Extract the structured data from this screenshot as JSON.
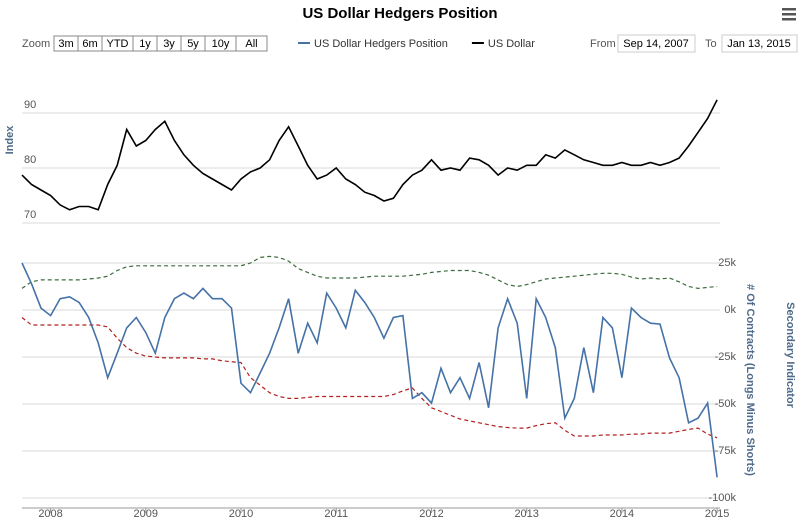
{
  "chart_data": {
    "type": "line",
    "title": "US Dollar Hedgers Position",
    "zoom": {
      "label": "Zoom",
      "buttons": [
        "3m",
        "6m",
        "YTD",
        "1y",
        "3y",
        "5y",
        "10y",
        "All"
      ]
    },
    "range": {
      "from_label": "From",
      "from": "Sep 14, 2007",
      "to_label": "To",
      "to": "Jan 13, 2015"
    },
    "y_label": "Index",
    "y2_labels": [
      "# Of Contracts (Longs Minus Shorts)",
      "Secondary Indicator"
    ],
    "xlim": [
      2007.7,
      2015.03
    ],
    "xticks": [
      2008,
      2009,
      2010,
      2011,
      2012,
      2013,
      2014,
      2015
    ],
    "ylim": [
      70,
      94
    ],
    "yticks": [
      70,
      80,
      90
    ],
    "y2lim": [
      -100000,
      30000
    ],
    "y2ticks": [
      {
        "value": 25000,
        "label": "25k"
      },
      {
        "value": 0,
        "label": "0k"
      },
      {
        "value": -25000,
        "label": "-25k"
      },
      {
        "value": -50000,
        "label": "-50k"
      },
      {
        "value": -75000,
        "label": "-75k"
      },
      {
        "value": -100000,
        "label": "-100k"
      }
    ],
    "grid": true,
    "x": [
      2007.7,
      2007.8,
      2007.9,
      2008.0,
      2008.1,
      2008.2,
      2008.3,
      2008.4,
      2008.5,
      2008.6,
      2008.7,
      2008.8,
      2008.9,
      2009.0,
      2009.1,
      2009.2,
      2009.3,
      2009.4,
      2009.5,
      2009.6,
      2009.7,
      2009.8,
      2009.9,
      2010.0,
      2010.1,
      2010.2,
      2010.3,
      2010.4,
      2010.5,
      2010.6,
      2010.7,
      2010.8,
      2010.9,
      2011.0,
      2011.1,
      2011.2,
      2011.3,
      2011.4,
      2011.5,
      2011.6,
      2011.7,
      2011.8,
      2011.9,
      2012.0,
      2012.1,
      2012.2,
      2012.3,
      2012.4,
      2012.5,
      2012.6,
      2012.7,
      2012.8,
      2012.9,
      2013.0,
      2013.1,
      2013.2,
      2013.3,
      2013.4,
      2013.5,
      2013.6,
      2013.7,
      2013.8,
      2013.9,
      2014.0,
      2014.1,
      2014.2,
      2014.3,
      2014.4,
      2014.5,
      2014.6,
      2014.7,
      2014.8,
      2014.9,
      2015.0
    ],
    "series": [
      {
        "name": "US Dollar Hedgers Position",
        "color": "#4572a7",
        "axis": "y2",
        "values": [
          25000,
          14000,
          1000,
          -3000,
          6000,
          7000,
          4000,
          -4000,
          -17500,
          -36000,
          -23000,
          -9500,
          -4000,
          -12000,
          -23000,
          -4000,
          6000,
          9000,
          6000,
          11500,
          6000,
          6000,
          1000,
          -39000,
          -44000,
          -33500,
          -23000,
          -9500,
          6000,
          -23000,
          -7000,
          -17500,
          9000,
          1000,
          -9500,
          10500,
          4000,
          -4000,
          -15000,
          -4000,
          -3000,
          -47000,
          -44000,
          -49500,
          -31000,
          -44000,
          -36000,
          -47000,
          -28000,
          -52000,
          -9500,
          6000,
          -7000,
          -47000,
          6000,
          -4000,
          -20000,
          -57500,
          -47000,
          -20000,
          -44000,
          -4000,
          -9500,
          -36000,
          1000,
          -4000,
          -7000,
          -7500,
          -25500,
          -36000,
          -60000,
          -57500,
          -49500,
          -89000
        ]
      },
      {
        "name": "US Dollar",
        "color": "#000000",
        "axis": "y",
        "values": [
          78.7,
          77,
          76,
          75,
          73.3,
          72.4,
          73,
          73,
          72.4,
          77,
          80.5,
          87,
          84,
          85,
          87,
          88.5,
          85,
          82.4,
          80.5,
          79,
          78,
          77,
          76,
          78,
          79.3,
          80,
          81.5,
          85,
          87.5,
          84,
          80.5,
          78,
          78.7,
          80,
          78,
          77,
          75.6,
          75,
          74,
          74.5,
          77,
          78.7,
          79.6,
          81.5,
          79.6,
          80,
          79.6,
          81.8,
          81.5,
          80.5,
          78.7,
          80,
          79.6,
          80.5,
          80.5,
          82.4,
          81.8,
          83.3,
          82.4,
          81.5,
          81,
          80.5,
          80.5,
          81,
          80.5,
          80.5,
          81,
          80.5,
          81,
          81.8,
          84,
          86.5,
          89,
          92.4
        ]
      },
      {
        "color": "#3d6b3d",
        "axis": "y2",
        "dash": true,
        "values": [
          11500,
          15000,
          16000,
          16000,
          16000,
          16000,
          16000,
          16500,
          17000,
          18000,
          21000,
          23000,
          23500,
          23500,
          23500,
          23500,
          23500,
          23500,
          23500,
          23500,
          23500,
          23500,
          23500,
          23500,
          25000,
          28000,
          28500,
          28000,
          26000,
          22000,
          20000,
          18000,
          17000,
          17000,
          17000,
          17000,
          17500,
          18000,
          18000,
          18000,
          18000,
          18500,
          19000,
          20000,
          20500,
          21000,
          21000,
          21000,
          20000,
          18500,
          16000,
          13500,
          12500,
          13500,
          15000,
          16500,
          17000,
          17500,
          18000,
          18500,
          19000,
          19500,
          19500,
          19000,
          17500,
          16500,
          17000,
          16500,
          17000,
          15000,
          12500,
          11500,
          12000,
          12500
        ]
      },
      {
        "color": "#b22222",
        "axis": "y2",
        "dash": true,
        "values": [
          -4000,
          -8000,
          -8000,
          -8000,
          -8000,
          -8000,
          -8000,
          -8000,
          -8000,
          -9000,
          -15000,
          -20000,
          -23000,
          -24500,
          -25000,
          -25500,
          -25500,
          -25500,
          -25500,
          -26000,
          -26000,
          -27000,
          -27500,
          -28000,
          -36000,
          -40000,
          -44000,
          -46000,
          -47000,
          -47000,
          -46500,
          -46000,
          -46000,
          -46000,
          -46000,
          -46000,
          -46000,
          -46000,
          -46000,
          -45000,
          -43000,
          -41500,
          -47000,
          -52000,
          -54000,
          -56000,
          -58000,
          -59000,
          -60000,
          -61000,
          -62000,
          -62500,
          -62800,
          -62800,
          -61500,
          -60500,
          -60000,
          -64000,
          -67000,
          -67000,
          -67000,
          -66500,
          -66500,
          -66500,
          -66000,
          -66000,
          -65500,
          -65500,
          -65500,
          -64500,
          -63500,
          -62800,
          -66000,
          -68000
        ]
      }
    ]
  }
}
